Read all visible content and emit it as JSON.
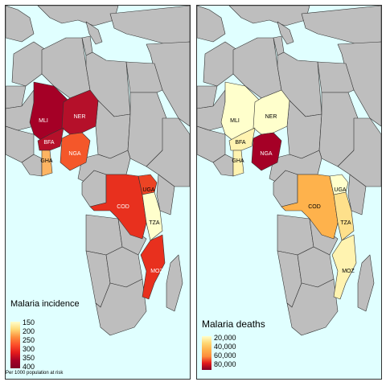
{
  "maps": [
    {
      "legend": {
        "title": "Malaria incidence",
        "labels": [
          "150",
          "200",
          "250",
          "300",
          "350",
          "400"
        ],
        "colors": [
          "#ffffcc",
          "#fed976",
          "#fd8d3c",
          "#fc4e2a",
          "#e31a1c",
          "#a50026",
          "#800026"
        ]
      },
      "footnote": "Per 1000 population at risk",
      "countries": [
        {
          "code": "MLI",
          "fill": "#a50026"
        },
        {
          "code": "NER",
          "fill": "#b5102a"
        },
        {
          "code": "BFA",
          "fill": "#b5102a"
        },
        {
          "code": "GHA",
          "fill": "#fdb462"
        },
        {
          "code": "NGA",
          "fill": "#f4572a"
        },
        {
          "code": "COD",
          "fill": "#e8301e"
        },
        {
          "code": "UGA",
          "fill": "#ec4424"
        },
        {
          "code": "TZA",
          "fill": "#ffffcc"
        },
        {
          "code": "MOZ",
          "fill": "#e8301e"
        }
      ]
    },
    {
      "legend": {
        "title": "Malaria deaths",
        "labels": [
          "20,000",
          "40,000",
          "60,000",
          "80,000"
        ],
        "colors": [
          "#ffffcc",
          "#fed976",
          "#feb24c",
          "#fd8d3c",
          "#e31a1c",
          "#800026"
        ]
      },
      "footnote": "",
      "countries": [
        {
          "code": "MLI",
          "fill": "#ffffcc"
        },
        {
          "code": "NER",
          "fill": "#ffffcc"
        },
        {
          "code": "BFA",
          "fill": "#fff3b0"
        },
        {
          "code": "GHA",
          "fill": "#fff3b0"
        },
        {
          "code": "NGA",
          "fill": "#a50026"
        },
        {
          "code": "COD",
          "fill": "#feb24c"
        },
        {
          "code": "UGA",
          "fill": "#ffffcc"
        },
        {
          "code": "TZA",
          "fill": "#fee08b"
        },
        {
          "code": "MOZ",
          "fill": "#fff3b0"
        }
      ]
    }
  ]
}
